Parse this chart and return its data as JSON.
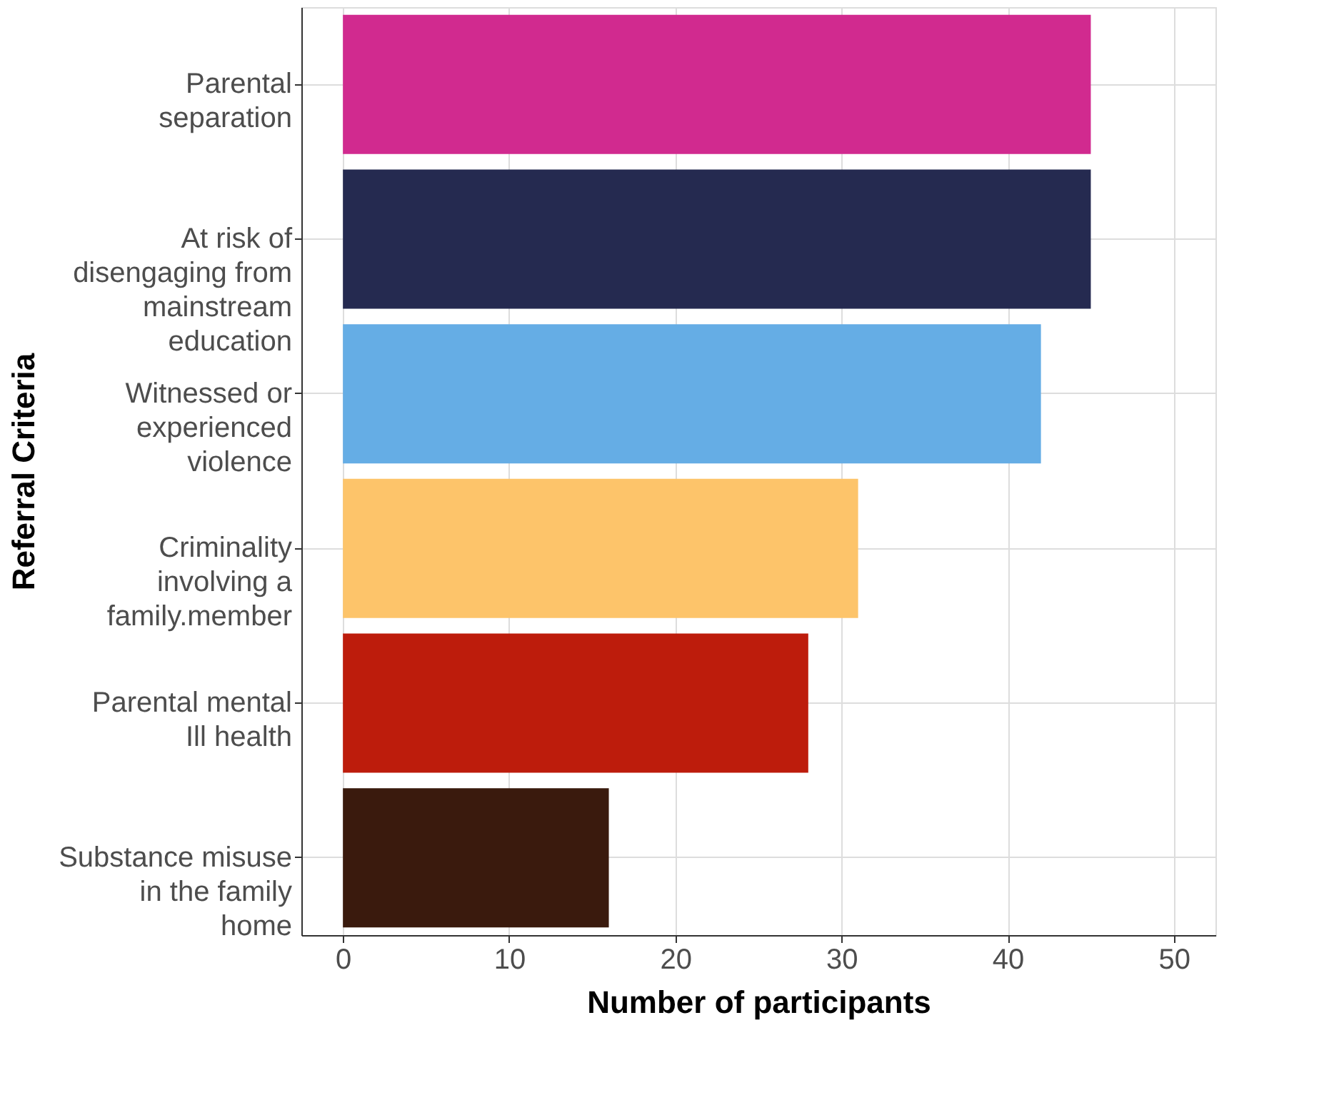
{
  "chart_data": {
    "type": "bar",
    "orientation": "horizontal",
    "categories": [
      "Parental\nseparation",
      "At risk of\ndisengaging from\nmainstream\neducation",
      "Witnessed or\nexperienced\nviolence",
      "Criminality\ninvolving a\nfamily.member",
      "Parental mental\nIll health",
      "Substance misuse\nin the family\nhome"
    ],
    "values": [
      45,
      45,
      42,
      31,
      28,
      16
    ],
    "colors": [
      "#d12a8f",
      "#252a50",
      "#65ade5",
      "#fdc46a",
      "#bd1c0c",
      "#3a1a0d"
    ],
    "xlabel": "Number of participants",
    "ylabel": "Referral Criteria",
    "xlim": [
      -2.5,
      52.5
    ],
    "xticks": [
      0,
      10,
      20,
      30,
      40,
      50
    ],
    "grid": true,
    "legend": false
  }
}
